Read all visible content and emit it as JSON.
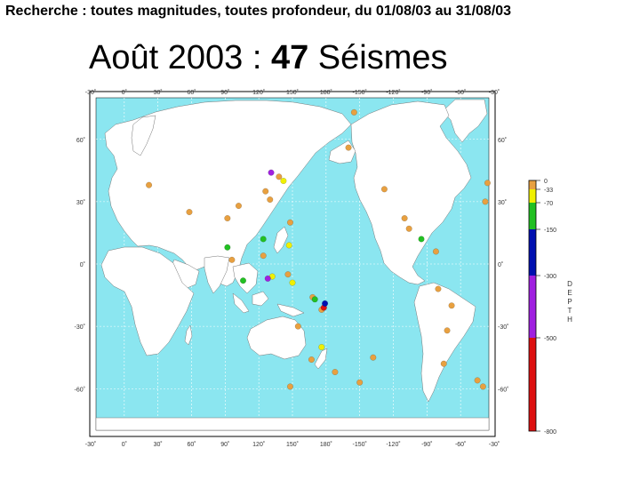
{
  "header": {
    "text": "Recherche : toutes magnitudes, toutes profondeur, du 01/08/03 au 31/08/03"
  },
  "title": {
    "prefix": "Août 2003 : ",
    "count": "47",
    "suffix": " Séismes"
  },
  "map": {
    "ocean_color": "#8be6f0",
    "land_color": "#ffffff",
    "lon_ticks": [
      "-30˚",
      "0˚",
      "30˚",
      "60˚",
      "90˚",
      "120˚",
      "150˚",
      "180˚",
      "-150˚",
      "-120˚",
      "-90˚",
      "-60˚",
      "-30˚"
    ],
    "lat_ticks": [
      "60˚",
      "30˚",
      "0˚",
      "-30˚",
      "-60˚"
    ]
  },
  "legend": {
    "label": "DEPTH",
    "ticks": [
      "0",
      "-33",
      "-70",
      "-150",
      "-300",
      "-500",
      "-800"
    ],
    "colors": [
      {
        "range": "0 to -33",
        "color": "#e8a040"
      },
      {
        "range": "-33 to -70",
        "color": "#f0f000"
      },
      {
        "range": "-70 to -150",
        "color": "#22c022"
      },
      {
        "range": "-150 to -300",
        "color": "#0010b0"
      },
      {
        "range": "-300 to -500",
        "color": "#a020e0"
      },
      {
        "range": "-500 to -800",
        "color": "#dd1010"
      }
    ]
  },
  "events": [
    {
      "lon": -36,
      "lat": 39,
      "depth": "shallow"
    },
    {
      "lon": -40,
      "lat": -59,
      "depth": "shallow"
    },
    {
      "lon": 22,
      "lat": 38,
      "depth": "shallow"
    },
    {
      "lon": 58,
      "lat": 25,
      "depth": "shallow"
    },
    {
      "lon": 92,
      "lat": 22,
      "depth": "shallow"
    },
    {
      "lon": 96,
      "lat": 2,
      "depth": "shallow"
    },
    {
      "lon": 102,
      "lat": 28,
      "depth": "shallow"
    },
    {
      "lon": 126,
      "lat": 35,
      "depth": "shallow"
    },
    {
      "lon": 130,
      "lat": 31,
      "depth": "shallow"
    },
    {
      "lon": 138,
      "lat": 42,
      "depth": "shallow"
    },
    {
      "lon": 148,
      "lat": 20,
      "depth": "shallow"
    },
    {
      "lon": 124,
      "lat": 4,
      "depth": "shallow"
    },
    {
      "lon": 146,
      "lat": -5,
      "depth": "shallow"
    },
    {
      "lon": 168,
      "lat": -16,
      "depth": "shallow"
    },
    {
      "lon": 176,
      "lat": -22,
      "depth": "shallow"
    },
    {
      "lon": 155,
      "lat": -30,
      "depth": "shallow"
    },
    {
      "lon": 167,
      "lat": -46,
      "depth": "shallow"
    },
    {
      "lon": 148,
      "lat": -59,
      "depth": "shallow"
    },
    {
      "lon": -172,
      "lat": -52,
      "depth": "shallow"
    },
    {
      "lon": -150,
      "lat": -57,
      "depth": "shallow"
    },
    {
      "lon": -138,
      "lat": -45,
      "depth": "shallow"
    },
    {
      "lon": -155,
      "lat": 73,
      "depth": "shallow"
    },
    {
      "lon": -160,
      "lat": 56,
      "depth": "shallow"
    },
    {
      "lon": -128,
      "lat": 36,
      "depth": "shallow"
    },
    {
      "lon": -110,
      "lat": 22,
      "depth": "shallow"
    },
    {
      "lon": -106,
      "lat": 17,
      "depth": "shallow"
    },
    {
      "lon": -82,
      "lat": 6,
      "depth": "shallow"
    },
    {
      "lon": -80,
      "lat": -12,
      "depth": "shallow"
    },
    {
      "lon": -68,
      "lat": -20,
      "depth": "shallow"
    },
    {
      "lon": -72,
      "lat": -32,
      "depth": "shallow"
    },
    {
      "lon": -75,
      "lat": -48,
      "depth": "shallow"
    },
    {
      "lon": -45,
      "lat": -56,
      "depth": "shallow"
    },
    {
      "lon": -38,
      "lat": 30,
      "depth": "shallow"
    },
    {
      "lon": 142,
      "lat": 40,
      "depth": "intermediate"
    },
    {
      "lon": 147,
      "lat": 9,
      "depth": "intermediate"
    },
    {
      "lon": 176,
      "lat": -40,
      "depth": "intermediate"
    },
    {
      "lon": 150,
      "lat": -9,
      "depth": "intermediate"
    },
    {
      "lon": 132,
      "lat": -6,
      "depth": "intermediate"
    },
    {
      "lon": 92,
      "lat": 8,
      "depth": "deep"
    },
    {
      "lon": 124,
      "lat": 12,
      "depth": "deep"
    },
    {
      "lon": 106,
      "lat": -8,
      "depth": "deep"
    },
    {
      "lon": 170,
      "lat": -17,
      "depth": "deep"
    },
    {
      "lon": -95,
      "lat": 12,
      "depth": "deep"
    },
    {
      "lon": 131,
      "lat": 44,
      "depth": "very-deep"
    },
    {
      "lon": 128,
      "lat": -7,
      "depth": "very-deep"
    },
    {
      "lon": 178,
      "lat": -21,
      "depth": "ultra-deep"
    },
    {
      "lon": 179,
      "lat": -19,
      "depth": "very-deep-blue"
    }
  ]
}
